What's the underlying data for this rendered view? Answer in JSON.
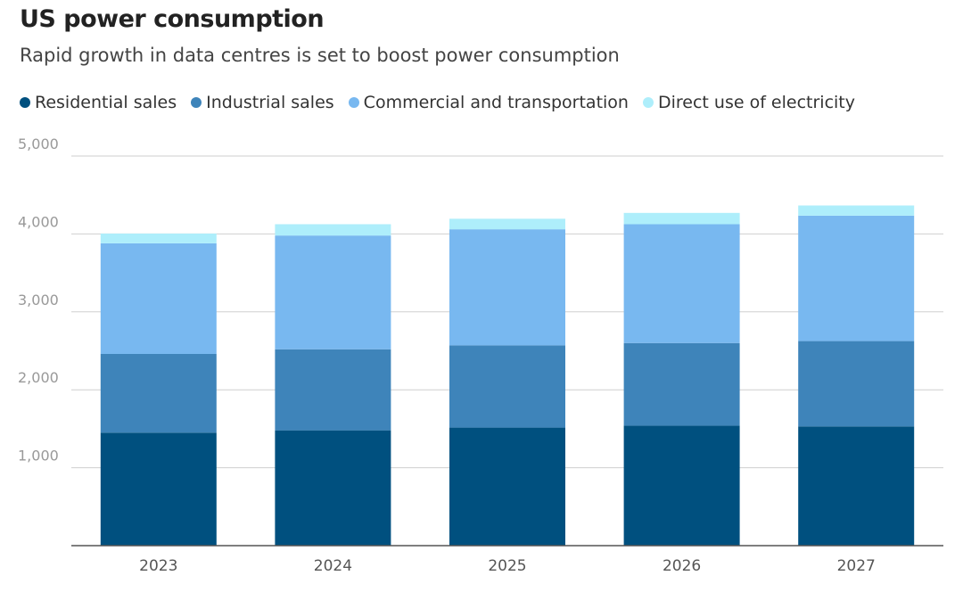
{
  "header": {
    "title": "US power consumption",
    "subtitle": "Rapid growth in data centres is set to boost power consumption"
  },
  "chart_data": {
    "type": "bar",
    "stacked": true,
    "title": "US power consumption",
    "subtitle": "Rapid growth in data centres is set to boost power consumption",
    "xlabel": "",
    "ylabel": "",
    "ylim": [
      0,
      5000
    ],
    "yticks": [
      1000,
      2000,
      3000,
      4000,
      5000
    ],
    "ytick_labels": [
      "1,000",
      "2,000",
      "3,000",
      "4,000",
      "5,000"
    ],
    "grid": true,
    "legend_position": "top",
    "categories": [
      "2023",
      "2024",
      "2025",
      "2026",
      "2027"
    ],
    "series": [
      {
        "name": "Residential sales",
        "color": "#00507f",
        "values": [
          1450,
          1480,
          1515,
          1540,
          1530
        ]
      },
      {
        "name": "Industrial sales",
        "color": "#3e84ba",
        "values": [
          1010,
          1040,
          1055,
          1060,
          1095
        ]
      },
      {
        "name": "Commercial and transportation",
        "color": "#78b8f0",
        "values": [
          1420,
          1460,
          1490,
          1525,
          1610
        ]
      },
      {
        "name": "Direct use of electricity",
        "color": "#aeeefb",
        "values": [
          125,
          145,
          135,
          145,
          130
        ]
      }
    ]
  }
}
